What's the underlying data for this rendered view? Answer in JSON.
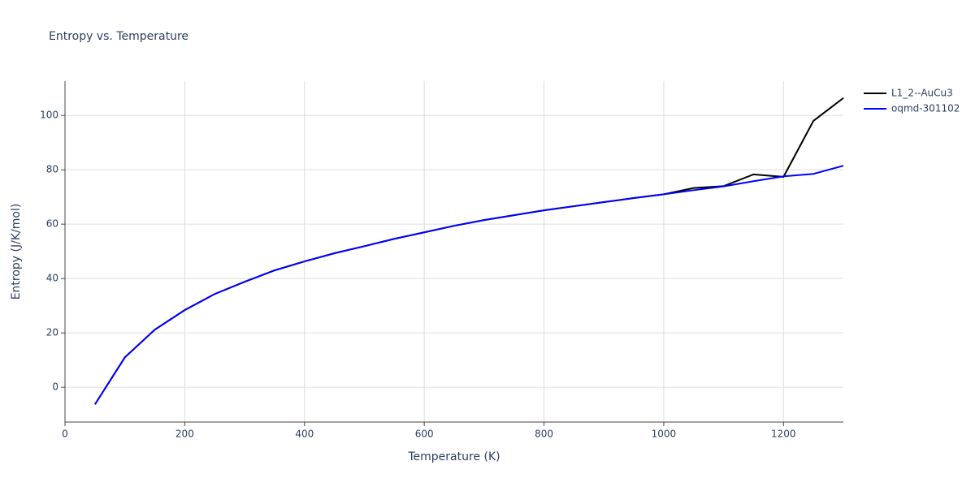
{
  "chart_data": {
    "type": "line",
    "title": "Entropy vs. Temperature",
    "x_label": "Temperature (K)",
    "y_label": "Entropy (J/K/mol)",
    "x": [
      50,
      100,
      150,
      200,
      250,
      300,
      350,
      400,
      450,
      500,
      550,
      600,
      650,
      700,
      750,
      800,
      850,
      900,
      950,
      1000,
      1050,
      1100,
      1150,
      1200,
      1250,
      1300
    ],
    "series": [
      {
        "name": "L1_2--AuCu3",
        "color": "#000000",
        "values": [
          -6.3,
          11.0,
          21.2,
          28.4,
          34.3,
          38.8,
          43.0,
          46.3,
          49.3,
          51.9,
          54.6,
          57.0,
          59.4,
          61.5,
          63.3,
          65.1,
          66.6,
          68.1,
          69.6,
          71.0,
          73.3,
          74.0,
          78.3,
          77.4,
          98.0,
          106.4
        ]
      },
      {
        "name": "oqmd-301102",
        "color": "#0000ff",
        "values": [
          -6.3,
          11.0,
          21.2,
          28.4,
          34.3,
          38.8,
          43.0,
          46.3,
          49.3,
          51.9,
          54.6,
          57.0,
          59.4,
          61.5,
          63.3,
          65.1,
          66.6,
          68.1,
          69.6,
          71.0,
          72.5,
          73.9,
          75.8,
          77.6,
          78.5,
          81.5
        ]
      }
    ],
    "xlim": [
      0,
      1300
    ],
    "xticks": [
      0,
      200,
      400,
      600,
      800,
      1000,
      1200
    ],
    "ylim": [
      -12.8,
      112.6
    ],
    "yticks": [
      0,
      20,
      40,
      60,
      80,
      100
    ],
    "grid": true,
    "legend": "top-right"
  }
}
